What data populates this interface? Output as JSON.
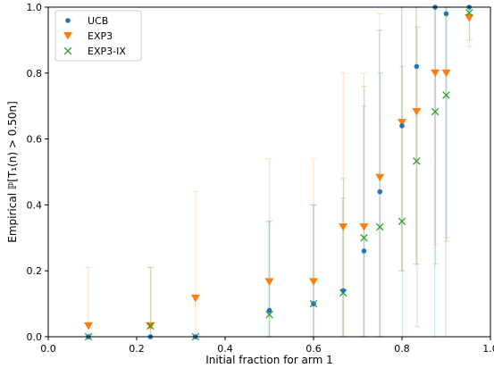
{
  "chart_data": {
    "type": "scatter",
    "xlabel": "Initial fraction for arm 1",
    "ylabel": "Empirical ℙ[T₁(n) > 0.50n]",
    "xlim": [
      0.0,
      1.0
    ],
    "ylim": [
      0.0,
      1.0
    ],
    "xticks": [
      "0.0",
      "0.2",
      "0.4",
      "0.6",
      "0.8",
      "1.0"
    ],
    "yticks": [
      "0.0",
      "0.2",
      "0.4",
      "0.6",
      "0.8",
      "1.0"
    ],
    "grid": false,
    "legend_position": "top-left",
    "series": [
      {
        "name": "UCB",
        "marker": "dot",
        "color": "#1f77b4",
        "x": [
          0.091,
          0.231,
          0.333,
          0.5,
          0.6,
          0.667,
          0.714,
          0.75,
          0.8,
          0.833,
          0.875,
          0.9,
          0.952
        ],
        "y": [
          0.0,
          0.0,
          0.0,
          0.08,
          0.1,
          0.14,
          0.26,
          0.44,
          0.64,
          0.82,
          1.0,
          0.98,
          1.0
        ],
        "err_low": [
          0.0,
          0.0,
          0.0,
          0.0,
          0.0,
          0.0,
          0.0,
          0.0,
          0.2,
          0.22,
          0.0,
          0.0,
          0.98
        ],
        "err_high": [
          0.0,
          0.0,
          0.0,
          0.35,
          0.4,
          0.42,
          0.7,
          0.93,
          1.0,
          1.0,
          1.0,
          1.0,
          1.0
        ]
      },
      {
        "name": "EXP3",
        "marker": "triangle-down",
        "color": "#ff7f0e",
        "x": [
          0.091,
          0.231,
          0.333,
          0.5,
          0.6,
          0.667,
          0.714,
          0.75,
          0.8,
          0.833,
          0.875,
          0.9,
          0.952
        ],
        "y": [
          0.033,
          0.033,
          0.117,
          0.167,
          0.167,
          0.333,
          0.333,
          0.483,
          0.65,
          0.683,
          0.8,
          0.8,
          0.967
        ],
        "err_low": [
          0.0,
          0.0,
          0.0,
          0.0,
          0.0,
          0.0,
          0.0,
          0.0,
          0.2,
          0.22,
          0.28,
          0.3,
          0.88
        ],
        "err_high": [
          0.21,
          0.21,
          0.44,
          0.54,
          0.54,
          0.8,
          0.8,
          0.98,
          1.0,
          1.0,
          1.0,
          1.0,
          1.0
        ]
      },
      {
        "name": "EXP3-IX",
        "marker": "x",
        "color": "#2ca02c",
        "x": [
          0.091,
          0.231,
          0.333,
          0.5,
          0.6,
          0.667,
          0.714,
          0.75,
          0.8,
          0.833,
          0.875,
          0.9,
          0.952
        ],
        "y": [
          0.0,
          0.033,
          0.0,
          0.067,
          0.1,
          0.133,
          0.3,
          0.333,
          0.35,
          0.533,
          0.683,
          0.733,
          0.983
        ],
        "err_low": [
          0.0,
          0.0,
          0.0,
          0.0,
          0.0,
          0.0,
          0.0,
          0.0,
          0.0,
          0.03,
          0.22,
          0.29,
          0.9
        ],
        "err_high": [
          0.0,
          0.21,
          0.0,
          0.35,
          0.4,
          0.48,
          0.76,
          0.8,
          0.82,
          0.94,
          1.0,
          1.0,
          1.0
        ]
      }
    ]
  }
}
